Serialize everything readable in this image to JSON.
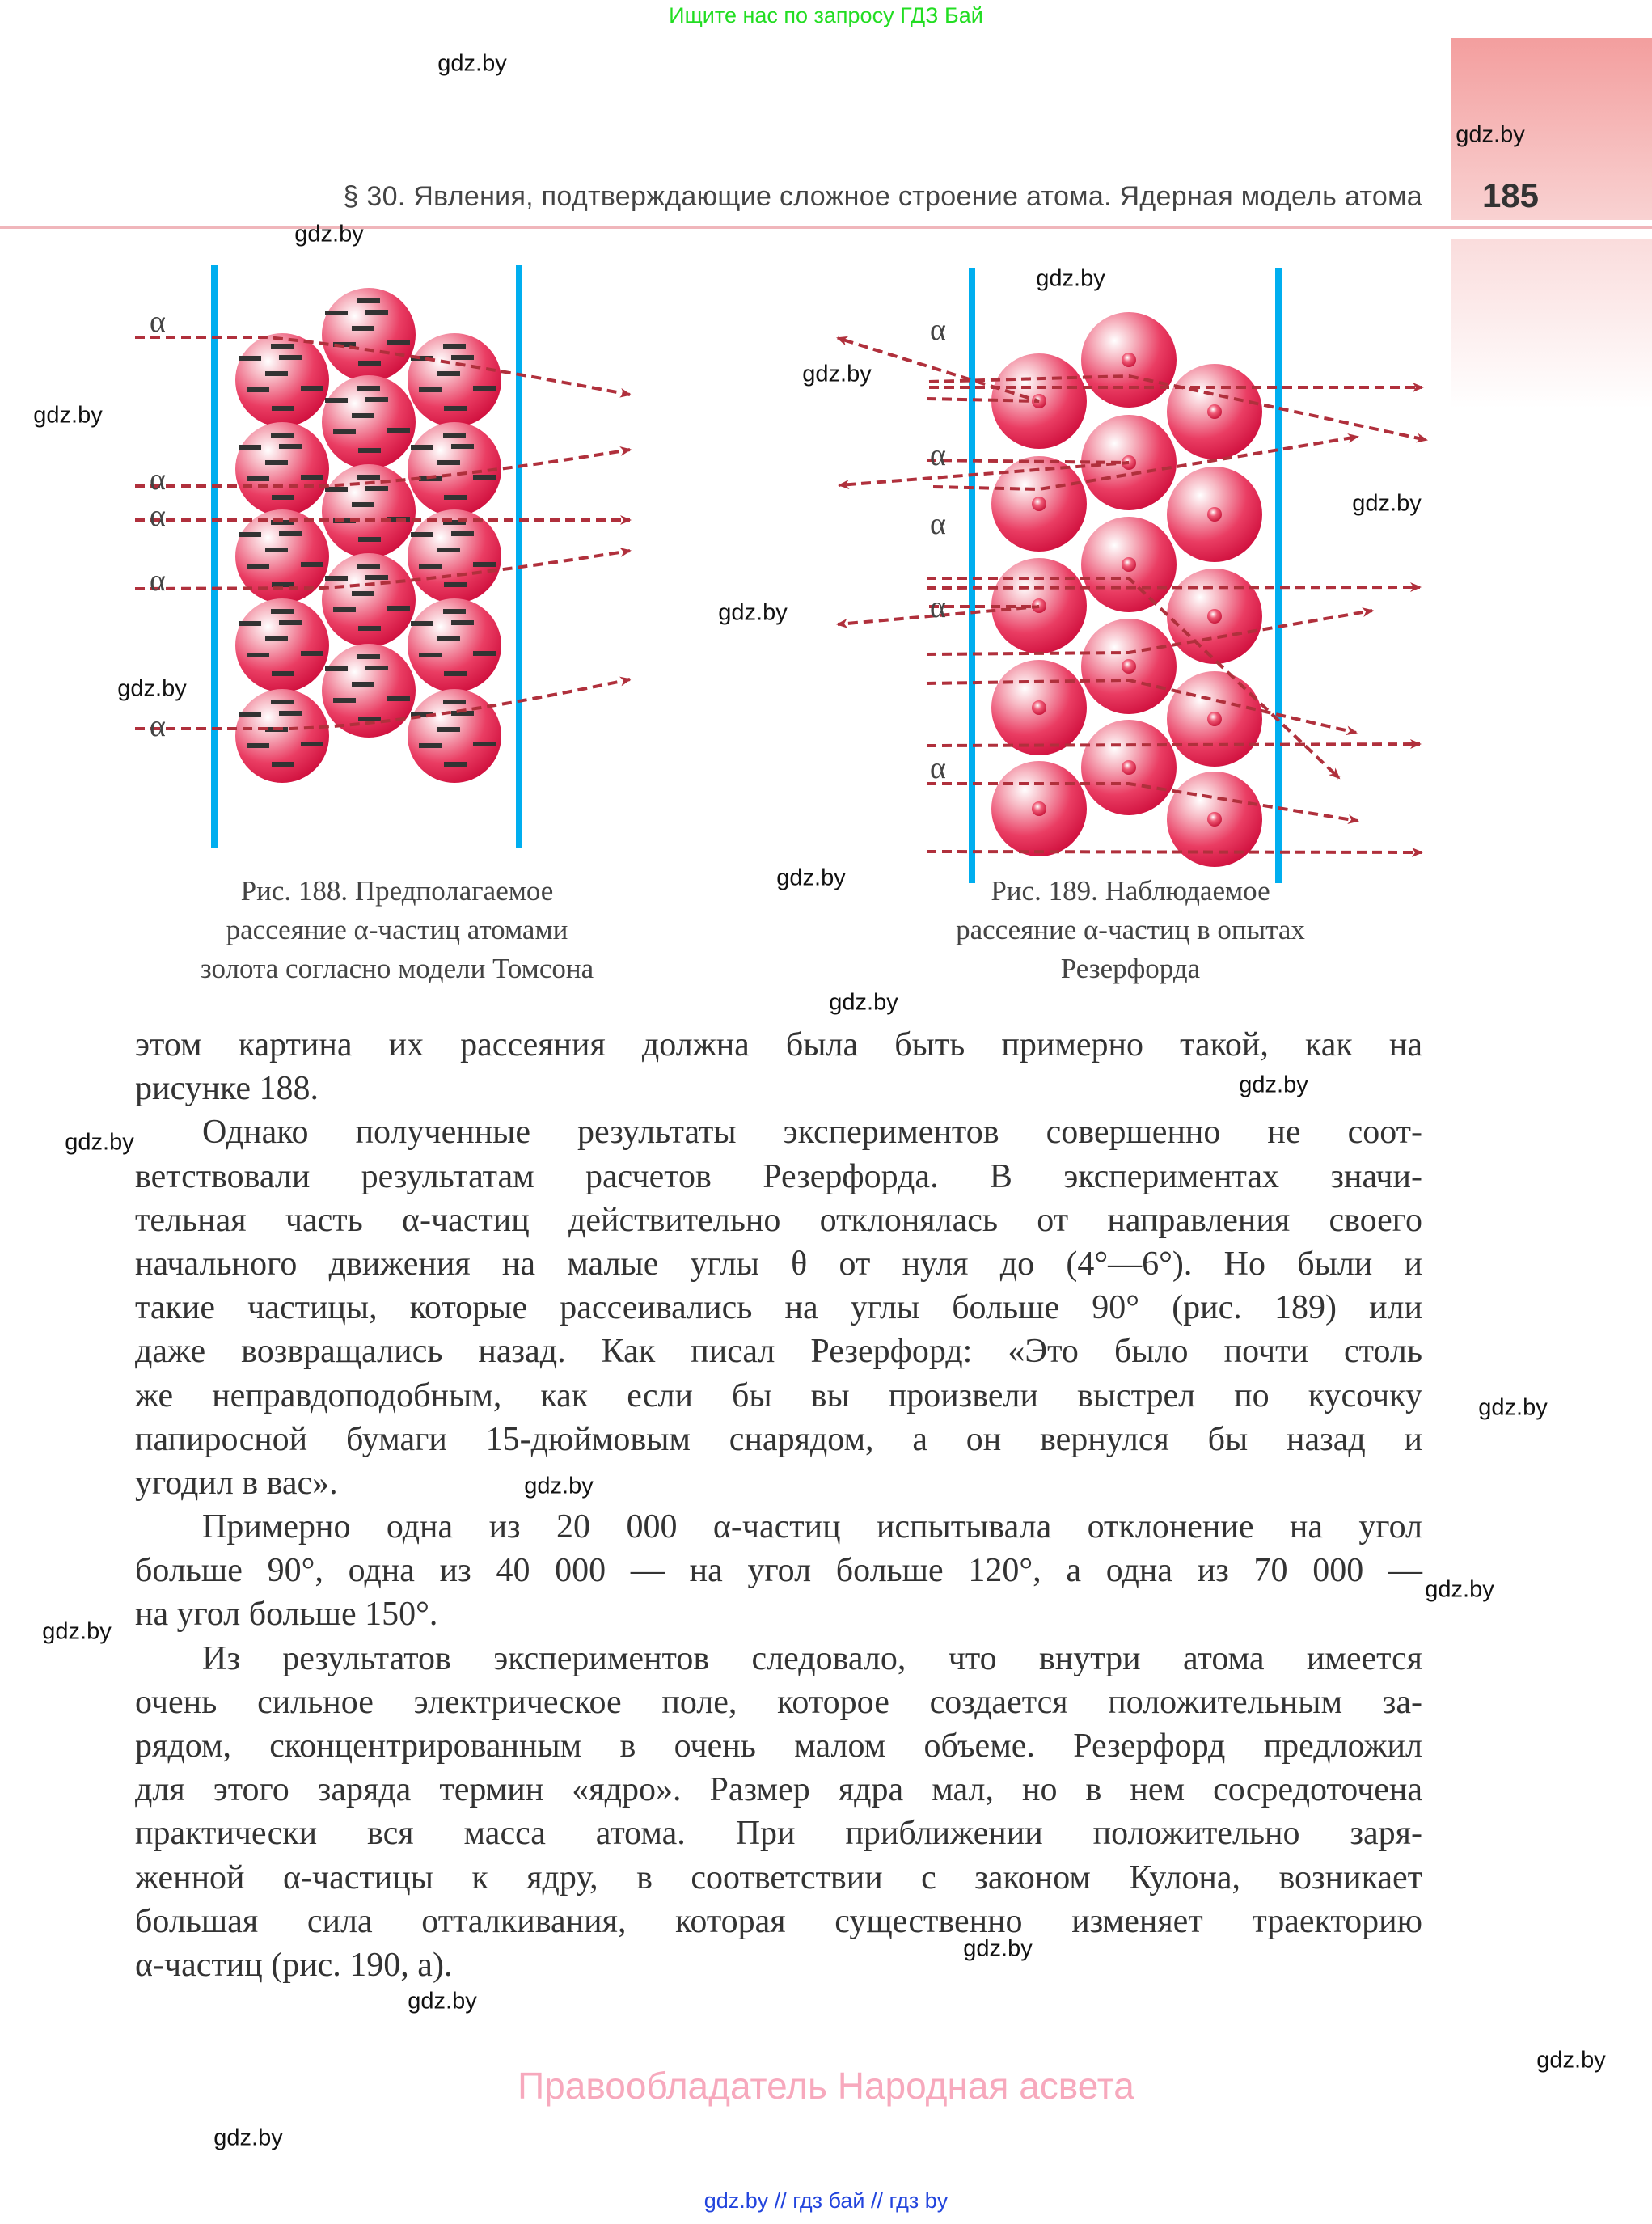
{
  "banner": {
    "text": "Ищите нас по запросу ГДЗ Бай",
    "color": "#22dd22"
  },
  "header": {
    "title": "§ 30. Явления, подтверждающие сложное строение атома. Ядерная модель атома",
    "page_number": "185",
    "accent_color": "#f39e9e"
  },
  "figures": {
    "alpha_symbol": "α",
    "fig188": {
      "caption": [
        "Рис. 188. Предполагаемое",
        "рассеяние α-частиц атомами",
        "золота согласно модели Томсона"
      ]
    },
    "fig189": {
      "caption": [
        "Рис. 189. Наблюдаемое",
        "рассеяние α-частиц  в опытах",
        "Резерфорда"
      ]
    },
    "colors": {
      "foil": "#00aeef",
      "atom": "#e8174f",
      "track": "#b0303c",
      "electron": "#333333"
    }
  },
  "body": {
    "lines": [
      "этом картина их рассеяния должна была быть примерно такой, как на",
      "рисунке 188.",
      "Однако полученные результаты экспериментов совершенно не соот-",
      "ветствовали результатам расчетов Резерфорда. В экспериментах значи-",
      "тельная часть α-частиц действительно отклонялась от направления своего",
      "начального движения на малые углы θ от нуля до (4°—6°). Но были и",
      "такие частицы, которые рассеивались на углы больше 90° (рис. 189) или",
      "даже возвращались назад. Как писал Резерфорд: «Это было почти столь",
      "же неправдоподобным, как если бы вы произвели выстрел по кусочку",
      "папиросной бумаги 15-дюймовым снарядом, а он вернулся бы назад и",
      "угодил в вас».",
      "Примерно одна из 20 000 α-частиц испытывала отклонение на угол",
      "больше 90°, одна из 40 000 — на угол больше 120°, а одна из 70 000 —",
      "на угол больше 150°.",
      "Из результатов экспериментов следовало, что внутри атома имеется",
      "очень сильное электрическое поле, которое создается положительным за-",
      "рядом, сконцентрированным в очень малом объеме. Резерфорд предложил",
      "для этого заряда термин «ядро». Размер ядра мал, но в нем сосредоточена",
      "практически вся масса атома. При приближении положительно заря-",
      "женной α-частицы к ядру, в соответствии с законом Кулона, возникает",
      "большая сила отталкивания, которая существенно изменяет траекторию",
      "α-частиц (рис. 190, а)."
    ]
  },
  "watermark": "gdz.by",
  "footer": {
    "rights": "Правообладатель Народная асвета",
    "links": "gdz.by  //  гдз бай  //  гдз by",
    "rights_color": "#f7a9bd",
    "links_color": "#2244dd"
  }
}
